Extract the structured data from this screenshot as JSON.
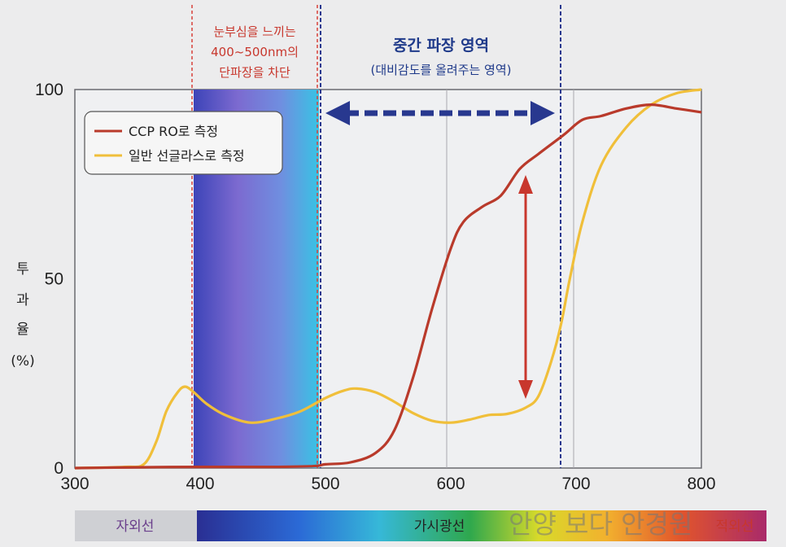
{
  "annotations": {
    "blocking": [
      "눈부심을 느끼는",
      "400~500nm의",
      "단파장을 차단"
    ],
    "mid_title": "중간 파장 영역",
    "mid_sub": "(대비감도를 올려주는 영역)"
  },
  "ylabel_chars": [
    "투",
    "과",
    "율",
    "(%)"
  ],
  "spectrum_bar": {
    "uv": "자외선",
    "visible": "가시광선",
    "ir": "적외선"
  },
  "watermark": "안양 보다 안경원",
  "colors": {
    "ccp": "#b93a2b",
    "normal": "#f0bf3a",
    "blue_dash": "#28388f",
    "red_dash": "#d8403a"
  },
  "chart_data": {
    "type": "line",
    "xlim": [
      300,
      800
    ],
    "ylim": [
      0,
      100
    ],
    "x_ticks": [
      "300",
      "400",
      "500",
      "600",
      "700",
      "800"
    ],
    "y_ticks": [
      "0",
      "50",
      "100"
    ],
    "highlight_band": [
      400,
      500
    ],
    "mid_region_marker": 690,
    "series": [
      {
        "name": "CCP RO로 측정",
        "color": "#b93a2b",
        "points": [
          [
            300,
            0
          ],
          [
            350,
            0.2
          ],
          [
            400,
            0.3
          ],
          [
            450,
            0.3
          ],
          [
            490,
            0.5
          ],
          [
            500,
            1
          ],
          [
            520,
            1.5
          ],
          [
            540,
            4
          ],
          [
            555,
            10
          ],
          [
            570,
            24
          ],
          [
            585,
            42
          ],
          [
            600,
            58
          ],
          [
            610,
            65
          ],
          [
            625,
            69
          ],
          [
            640,
            72
          ],
          [
            655,
            79
          ],
          [
            670,
            83
          ],
          [
            690,
            88
          ],
          [
            705,
            92
          ],
          [
            720,
            93
          ],
          [
            740,
            95
          ],
          [
            760,
            96
          ],
          [
            780,
            95
          ],
          [
            800,
            94
          ]
        ]
      },
      {
        "name": "일반 선글라스로 측정",
        "color": "#f0bf3a",
        "points": [
          [
            300,
            0
          ],
          [
            340,
            0.3
          ],
          [
            355,
            1
          ],
          [
            365,
            7
          ],
          [
            373,
            15
          ],
          [
            382,
            20
          ],
          [
            388,
            21.5
          ],
          [
            395,
            20
          ],
          [
            405,
            17
          ],
          [
            420,
            14
          ],
          [
            440,
            12
          ],
          [
            460,
            13
          ],
          [
            480,
            15
          ],
          [
            500,
            18.5
          ],
          [
            515,
            20.5
          ],
          [
            525,
            21
          ],
          [
            540,
            20
          ],
          [
            555,
            17.5
          ],
          [
            570,
            14.5
          ],
          [
            585,
            12.5
          ],
          [
            600,
            12
          ],
          [
            615,
            12.8
          ],
          [
            630,
            14
          ],
          [
            645,
            14.3
          ],
          [
            660,
            16
          ],
          [
            670,
            19
          ],
          [
            680,
            28
          ],
          [
            688,
            38
          ],
          [
            695,
            50
          ],
          [
            705,
            65
          ],
          [
            720,
            80
          ],
          [
            740,
            90
          ],
          [
            760,
            96
          ],
          [
            780,
            99
          ],
          [
            800,
            100
          ]
        ]
      }
    ]
  }
}
